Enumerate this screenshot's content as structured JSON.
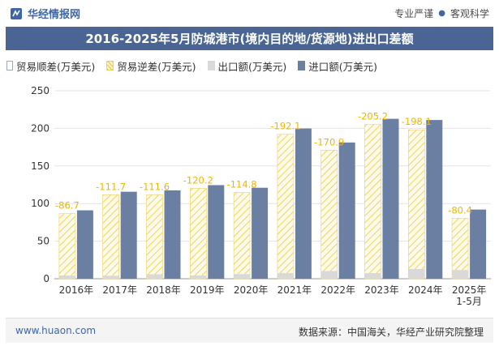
{
  "header": {
    "brand": "华经情报网",
    "tagline_left": "专业严谨",
    "tagline_right": "客观科学"
  },
  "legend": {
    "surplus": "贸易顺差(万美元)",
    "deficit": "贸易逆差(万美元)",
    "export": "出口额(万美元)",
    "import": "进口额(万美元)"
  },
  "footer": {
    "website": "www.huaon.com",
    "source": "数据来源：中国海关，华经产业研究院整理"
  },
  "colors": {
    "import": "#6b7fa3",
    "export": "#d9d9d9",
    "deficit": "#f1d15a",
    "label": "#f0b400",
    "title_bg": "#4a6593"
  },
  "chart_data": {
    "type": "bar",
    "title": "2016-2025年5月防城港市(境内目的地/货源地)进出口差额",
    "categories": [
      "2016年",
      "2017年",
      "2018年",
      "2019年",
      "2020年",
      "2021年",
      "2022年",
      "2023年",
      "2024年",
      "2025年\n1-5月"
    ],
    "series": [
      {
        "name": "贸易顺差(万美元)",
        "values": [
          0,
          0,
          0,
          0,
          0,
          0,
          0,
          0,
          0,
          0
        ]
      },
      {
        "name": "贸易逆差(万美元)",
        "values": [
          -86.7,
          -111.7,
          -111.6,
          -120.2,
          -114.8,
          -192.1,
          -170.9,
          -205.2,
          -198.1,
          -80.4
        ]
      },
      {
        "name": "出口额(万美元)",
        "values": [
          4.3,
          4.0,
          6.0,
          4.3,
          6.2,
          7.7,
          10.3,
          7.5,
          13.0,
          11.6
        ]
      },
      {
        "name": "进口额(万美元)",
        "values": [
          91.0,
          115.7,
          117.6,
          124.5,
          121.0,
          199.8,
          181.2,
          212.7,
          211.1,
          92.0
        ]
      }
    ],
    "data_labels": [
      "-86.7",
      "-111.7",
      "-111.6",
      "-120.2",
      "-114.8",
      "-192.1",
      "-170.9",
      "-205.2",
      "-198.1",
      "-80.4"
    ],
    "yticks": [
      0,
      50,
      100,
      150,
      200,
      250
    ],
    "ylim": [
      0,
      250
    ],
    "grid": true,
    "legend_position": "top-left"
  }
}
